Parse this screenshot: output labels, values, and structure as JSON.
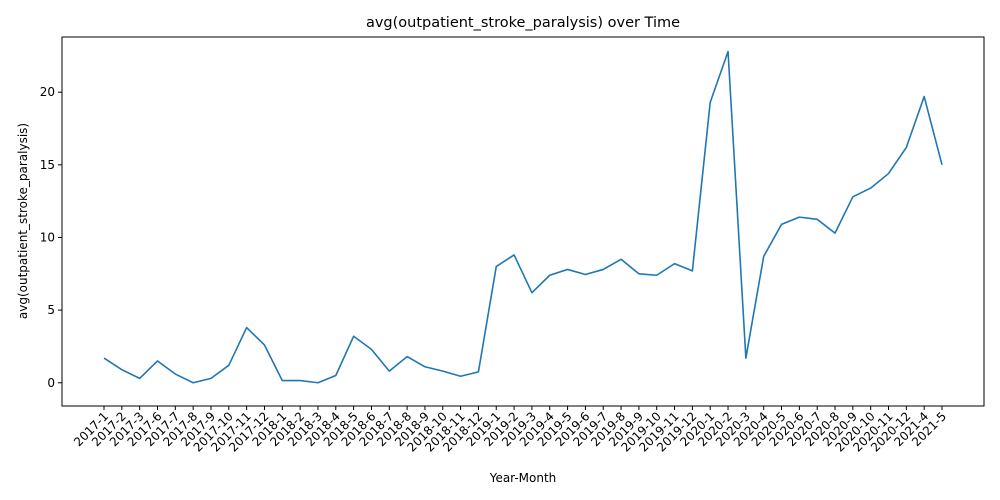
{
  "chart_data": {
    "type": "line",
    "title": "avg(outpatient_stroke_paralysis) over Time",
    "xlabel": "Year-Month",
    "ylabel": "avg(outpatient_stroke_paralysis)",
    "ylim": [
      -1.6,
      23.8
    ],
    "yticks": [
      0,
      5,
      10,
      15,
      20
    ],
    "grid": false,
    "line_color": "#1f77b4",
    "categories": [
      "2017-1",
      "2017-2",
      "2017-3",
      "2017-6",
      "2017-7",
      "2017-8",
      "2017-9",
      "2017-10",
      "2017-11",
      "2017-12",
      "2018-1",
      "2018-2",
      "2018-3",
      "2018-4",
      "2018-5",
      "2018-6",
      "2018-7",
      "2018-8",
      "2018-9",
      "2018-10",
      "2018-11",
      "2018-12",
      "2019-1",
      "2019-2",
      "2019-3",
      "2019-4",
      "2019-5",
      "2019-6",
      "2019-7",
      "2019-8",
      "2019-9",
      "2019-10",
      "2019-11",
      "2019-12",
      "2020-1",
      "2020-2",
      "2020-3",
      "2020-4",
      "2020-5",
      "2020-6",
      "2020-7",
      "2020-8",
      "2020-9",
      "2020-10",
      "2020-11",
      "2020-12",
      "2021-4",
      "2021-5"
    ],
    "values": [
      1.7,
      0.9,
      0.3,
      1.5,
      0.6,
      0.0,
      0.3,
      1.2,
      3.8,
      2.6,
      0.15,
      0.15,
      0.0,
      0.5,
      3.2,
      2.3,
      0.8,
      1.8,
      1.1,
      0.8,
      0.45,
      0.75,
      8.0,
      8.8,
      6.2,
      7.4,
      7.8,
      7.45,
      7.8,
      8.5,
      7.5,
      7.4,
      8.2,
      7.7,
      19.3,
      22.8,
      1.7,
      8.7,
      10.9,
      11.4,
      11.25,
      10.3,
      12.8,
      13.4,
      14.4,
      16.2,
      19.7,
      15.0
    ]
  }
}
